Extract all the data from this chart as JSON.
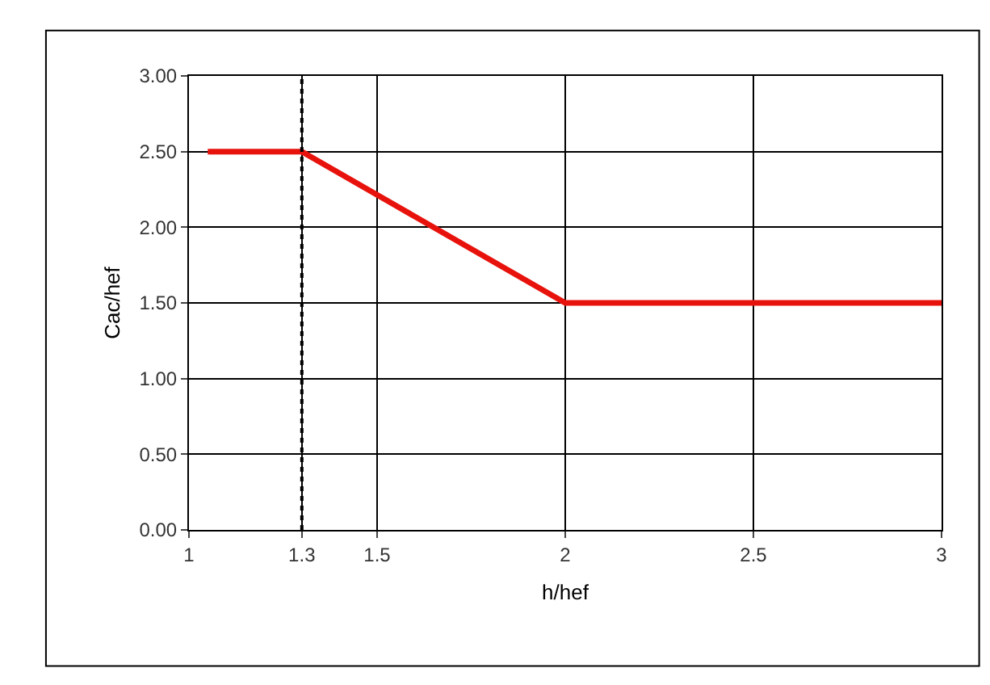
{
  "chart_data": {
    "type": "line",
    "xlabel": "h/hef",
    "ylabel": "Cac/hef",
    "x": [
      1.05,
      1.3,
      2,
      3
    ],
    "series": [
      {
        "color": "#e8120c",
        "values": [
          2.5,
          2.5,
          1.5,
          1.5
        ]
      }
    ],
    "xlim": [
      1,
      3
    ],
    "xticks": [
      1,
      1.3,
      1.5,
      2,
      2.5,
      3
    ],
    "ylim": [
      0,
      3
    ],
    "yticks": [
      {
        "value": 0,
        "label": "0.00"
      },
      {
        "value": 0.5,
        "label": "0.50"
      },
      {
        "value": 1,
        "label": "1.00"
      },
      {
        "value": 1.5,
        "label": "1.50"
      },
      {
        "value": 2,
        "label": "2.00"
      },
      {
        "value": 2.5,
        "label": "2.50"
      },
      {
        "value": 3,
        "label": "3.00"
      }
    ],
    "ref_lines": [
      {
        "axis": "x",
        "value": 1.3,
        "color": "#000000",
        "line_style": "dotted"
      }
    ],
    "grid": true,
    "marker": "none",
    "line_style": "solid"
  }
}
